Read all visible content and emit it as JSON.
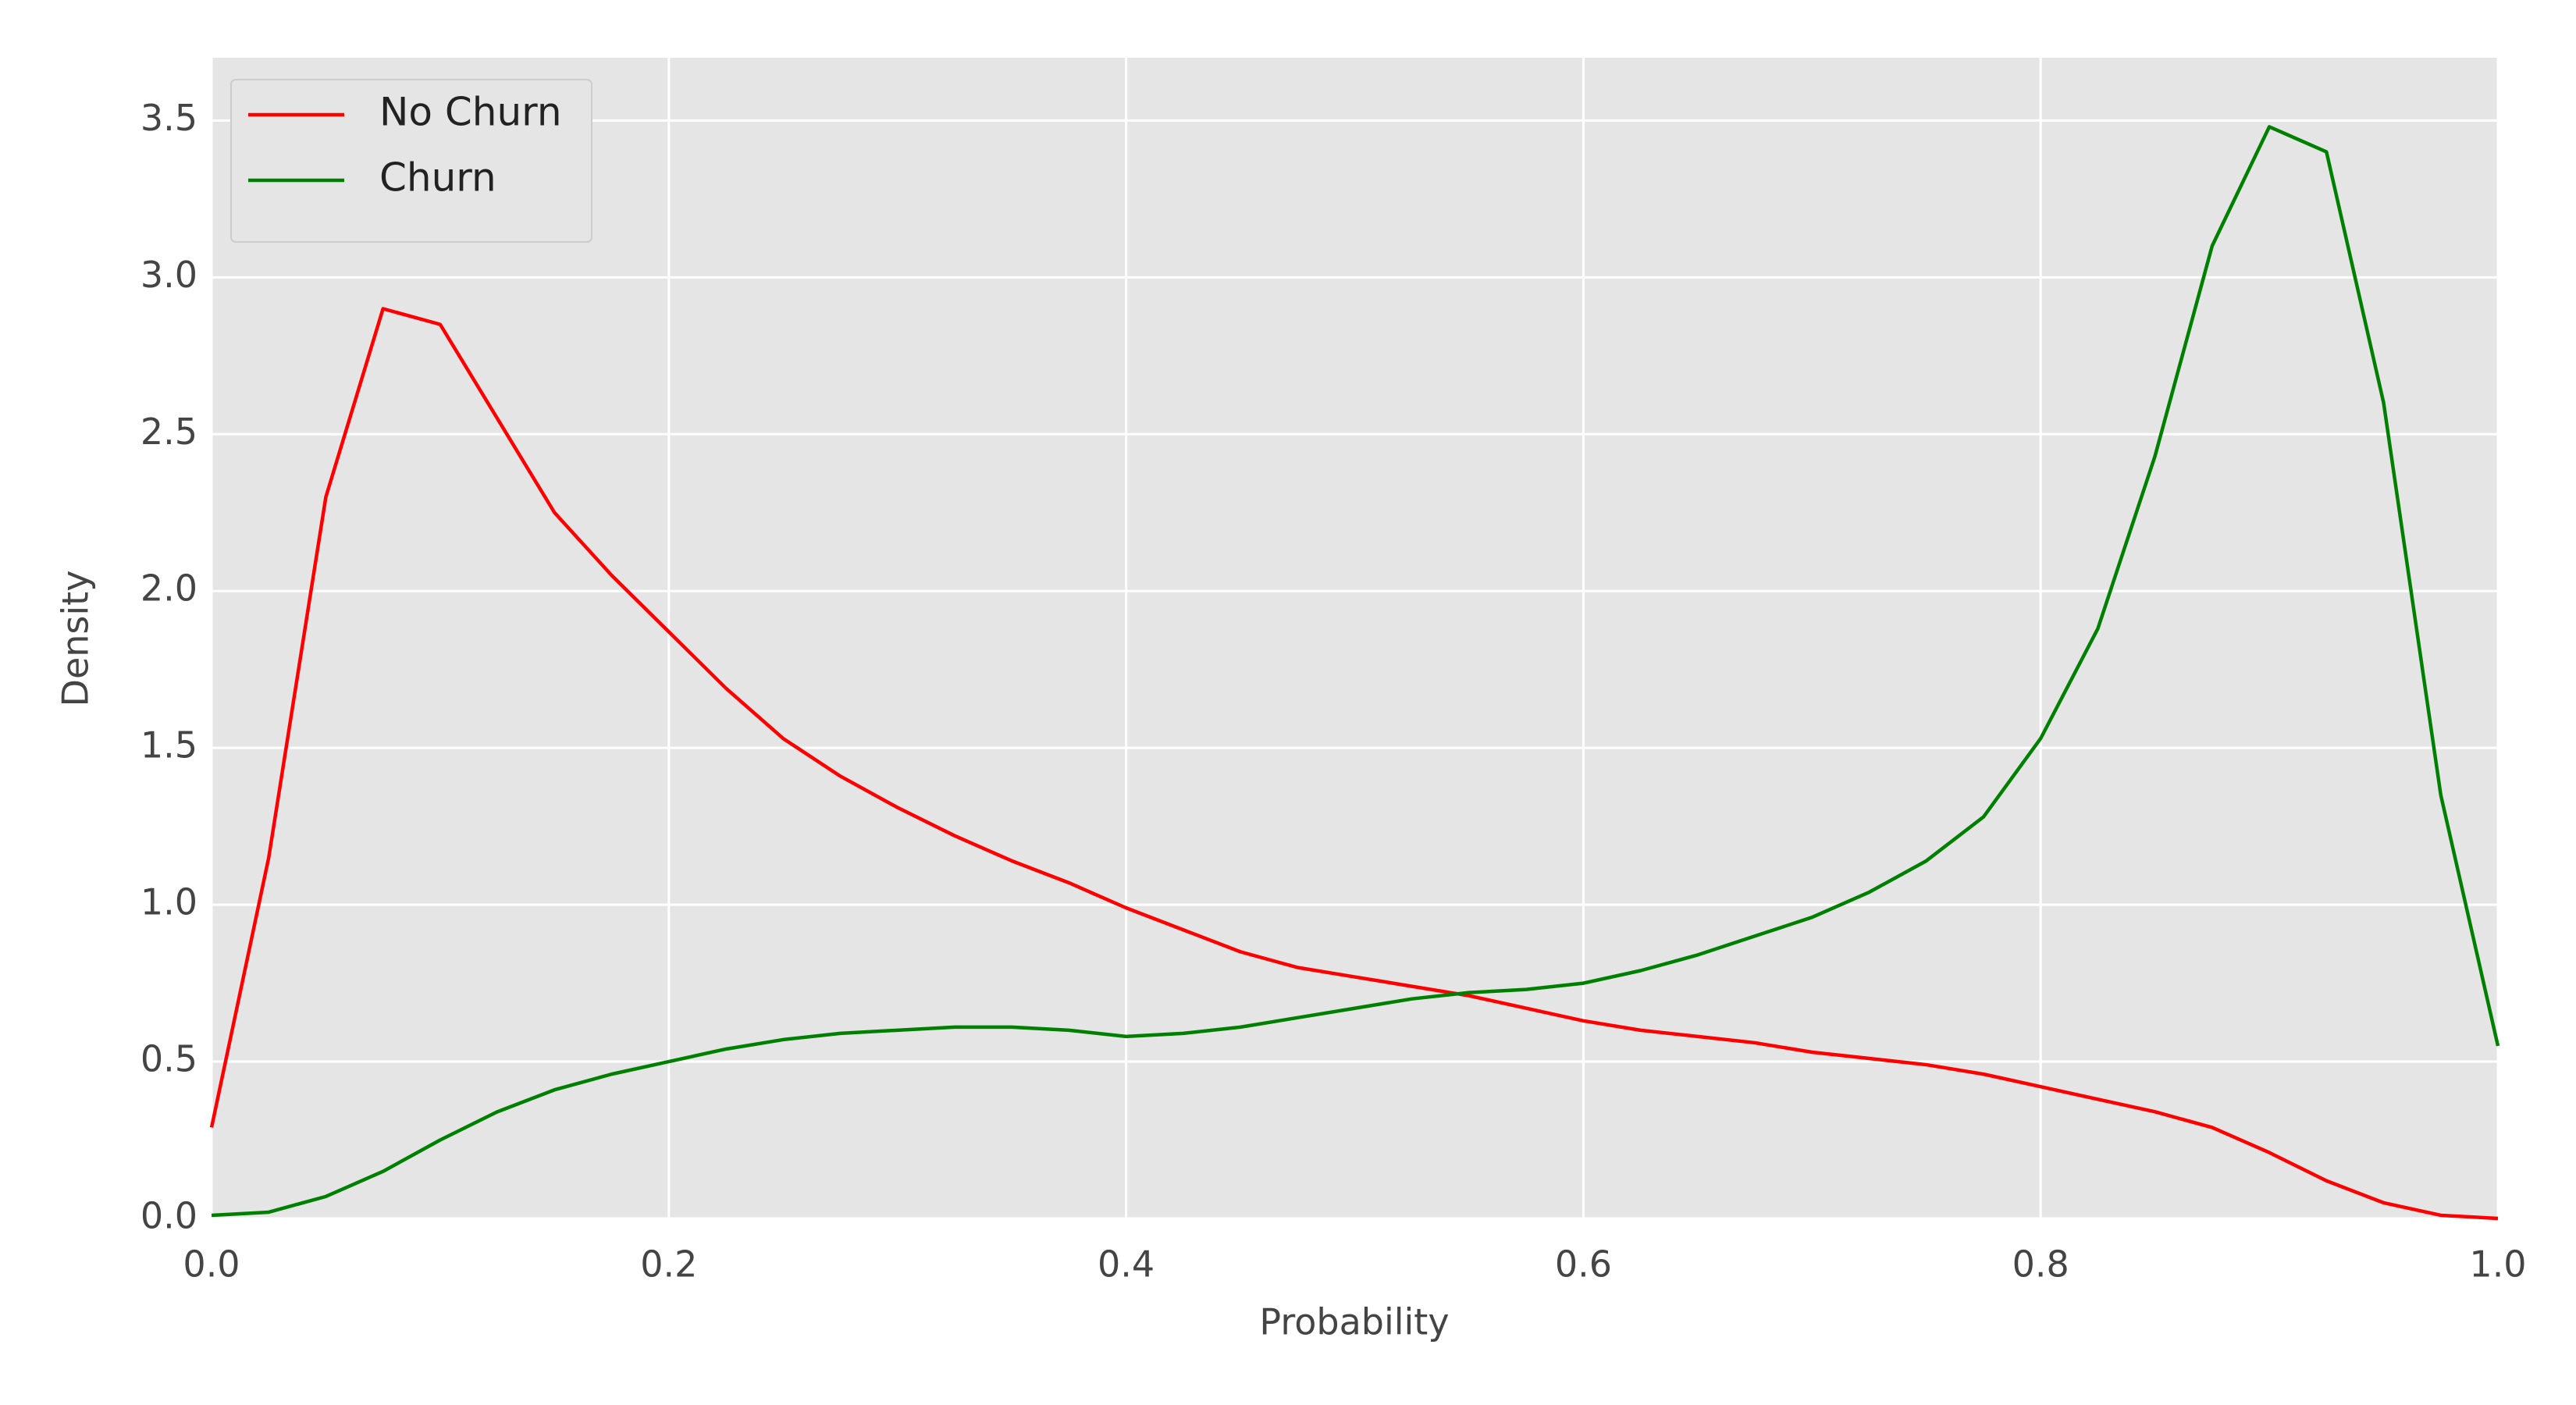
{
  "chart_data": {
    "type": "line",
    "xlabel": "Probability",
    "ylabel": "Density",
    "x": [
      0,
      0.025,
      0.05,
      0.075,
      0.1,
      0.125,
      0.15,
      0.175,
      0.2,
      0.225,
      0.25,
      0.275,
      0.3,
      0.325,
      0.35,
      0.375,
      0.4,
      0.425,
      0.45,
      0.475,
      0.5,
      0.525,
      0.55,
      0.575,
      0.6,
      0.625,
      0.65,
      0.675,
      0.7,
      0.725,
      0.75,
      0.775,
      0.8,
      0.825,
      0.85,
      0.875,
      0.9,
      0.925,
      0.95,
      0.975,
      1
    ],
    "series": [
      {
        "name": "No Churn",
        "color": "#ff0000",
        "values": [
          0.29,
          1.15,
          2.3,
          2.9,
          2.85,
          2.55,
          2.25,
          2.05,
          1.87,
          1.69,
          1.53,
          1.41,
          1.31,
          1.22,
          1.14,
          1.07,
          0.99,
          0.92,
          0.85,
          0.8,
          0.77,
          0.74,
          0.71,
          0.67,
          0.63,
          0.6,
          0.58,
          0.56,
          0.53,
          0.51,
          0.49,
          0.46,
          0.42,
          0.38,
          0.34,
          0.29,
          0.21,
          0.12,
          0.05,
          0.01,
          0
        ]
      },
      {
        "name": "Churn",
        "color": "#008000",
        "values": [
          0.01,
          0.02,
          0.07,
          0.15,
          0.25,
          0.34,
          0.41,
          0.46,
          0.5,
          0.54,
          0.57,
          0.59,
          0.6,
          0.61,
          0.61,
          0.6,
          0.58,
          0.59,
          0.61,
          0.64,
          0.67,
          0.7,
          0.72,
          0.73,
          0.75,
          0.79,
          0.84,
          0.9,
          0.96,
          1.04,
          1.14,
          1.28,
          1.53,
          1.88,
          2.43,
          3.1,
          3.48,
          3.4,
          2.6,
          1.35,
          0.55
        ]
      }
    ],
    "xlim": [
      0,
      1
    ],
    "ylim": [
      0,
      3.7
    ],
    "xticks": [
      {
        "value": 0,
        "label": "0.0"
      },
      0.2,
      0.4,
      0.6,
      0.8,
      {
        "value": 1,
        "label": "1.0"
      }
    ],
    "yticks": [
      {
        "value": 0,
        "label": "0.0"
      },
      0.5,
      {
        "value": 1,
        "label": "1.0"
      },
      1.5,
      {
        "value": 2,
        "label": "2.0"
      },
      2.5,
      {
        "value": 3,
        "label": "3.0"
      },
      3.5
    ],
    "grid": true,
    "legend": "upper left"
  }
}
